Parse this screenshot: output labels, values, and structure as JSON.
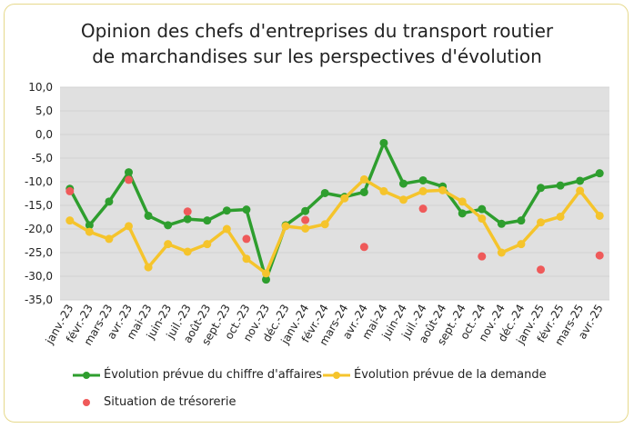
{
  "chart_data": {
    "type": "line",
    "title": "Opinion des chefs d'entreprises du transport routier de marchandises sur les perspectives d'évolution",
    "title_lines": [
      "Opinion des chefs d'entreprises du transport routier",
      "de marchandises sur les perspectives d'évolution"
    ],
    "categories": [
      "janv.-23",
      "févr.-23",
      "mars-23",
      "avr.-23",
      "mai-23",
      "juin-23",
      "juil.-23",
      "août-23",
      "sept.-23",
      "oct.-23",
      "nov.-23",
      "déc.-23",
      "janv.-24",
      "févr.-24",
      "mars-24",
      "avr.-24",
      "mai-24",
      "juin-24",
      "juil.-24",
      "août-24",
      "sept.-24",
      "oct.-24",
      "nov.-24",
      "déc.-24",
      "janv.-25",
      "févr.-25",
      "mars-25",
      "avr.-25"
    ],
    "ylim": [
      -35,
      10
    ],
    "yticks": [
      "10,0",
      "5,0",
      "0,0",
      "-5,0",
      "-10,0",
      "-15,0",
      "-20,0",
      "-25,0",
      "-30,0",
      "-35,0"
    ],
    "grid": true,
    "legend_placement": "bottom",
    "background": "#e0e0e0",
    "series": [
      {
        "name": "Évolution prévue du chiffre d'affaires",
        "color": "#2e9e2e",
        "style": "line-markers",
        "values": [
          -11.5,
          -19.2,
          -14.2,
          -8,
          -17.2,
          -19.2,
          -17.9,
          -18.2,
          -16.1,
          -15.9,
          -30.7,
          -19.2,
          -16.2,
          -12.4,
          -13.2,
          -12.2,
          -1.8,
          -10.4,
          -9.7,
          -11,
          -16.7,
          -15.8,
          -18.9,
          -18.2,
          -11.3,
          -10.8,
          -9.8,
          -8.2
        ]
      },
      {
        "name": "Évolution prévue de la demande",
        "color": "#f5c42c",
        "style": "line-markers",
        "values": [
          -18.2,
          -20.6,
          -22.1,
          -19.4,
          -28.1,
          -23.2,
          -24.8,
          -23.2,
          -20,
          -26.3,
          -29.4,
          -19.4,
          -19.9,
          -19,
          -13.5,
          -9.5,
          -12,
          -13.8,
          -12,
          -11.8,
          -14.2,
          -17.8,
          -25,
          -23.2,
          -18.6,
          -17.4,
          -11.9,
          -17.2
        ]
      },
      {
        "name": "Situation de trésorerie",
        "color": "#ef5a5a",
        "style": "markers",
        "values": [
          -12,
          null,
          null,
          -9.6,
          null,
          null,
          -16.3,
          null,
          null,
          -22.1,
          null,
          null,
          -18.1,
          null,
          null,
          -23.8,
          null,
          null,
          -15.7,
          null,
          null,
          -25.8,
          null,
          null,
          -28.6,
          null,
          null,
          -25.6
        ]
      }
    ]
  }
}
